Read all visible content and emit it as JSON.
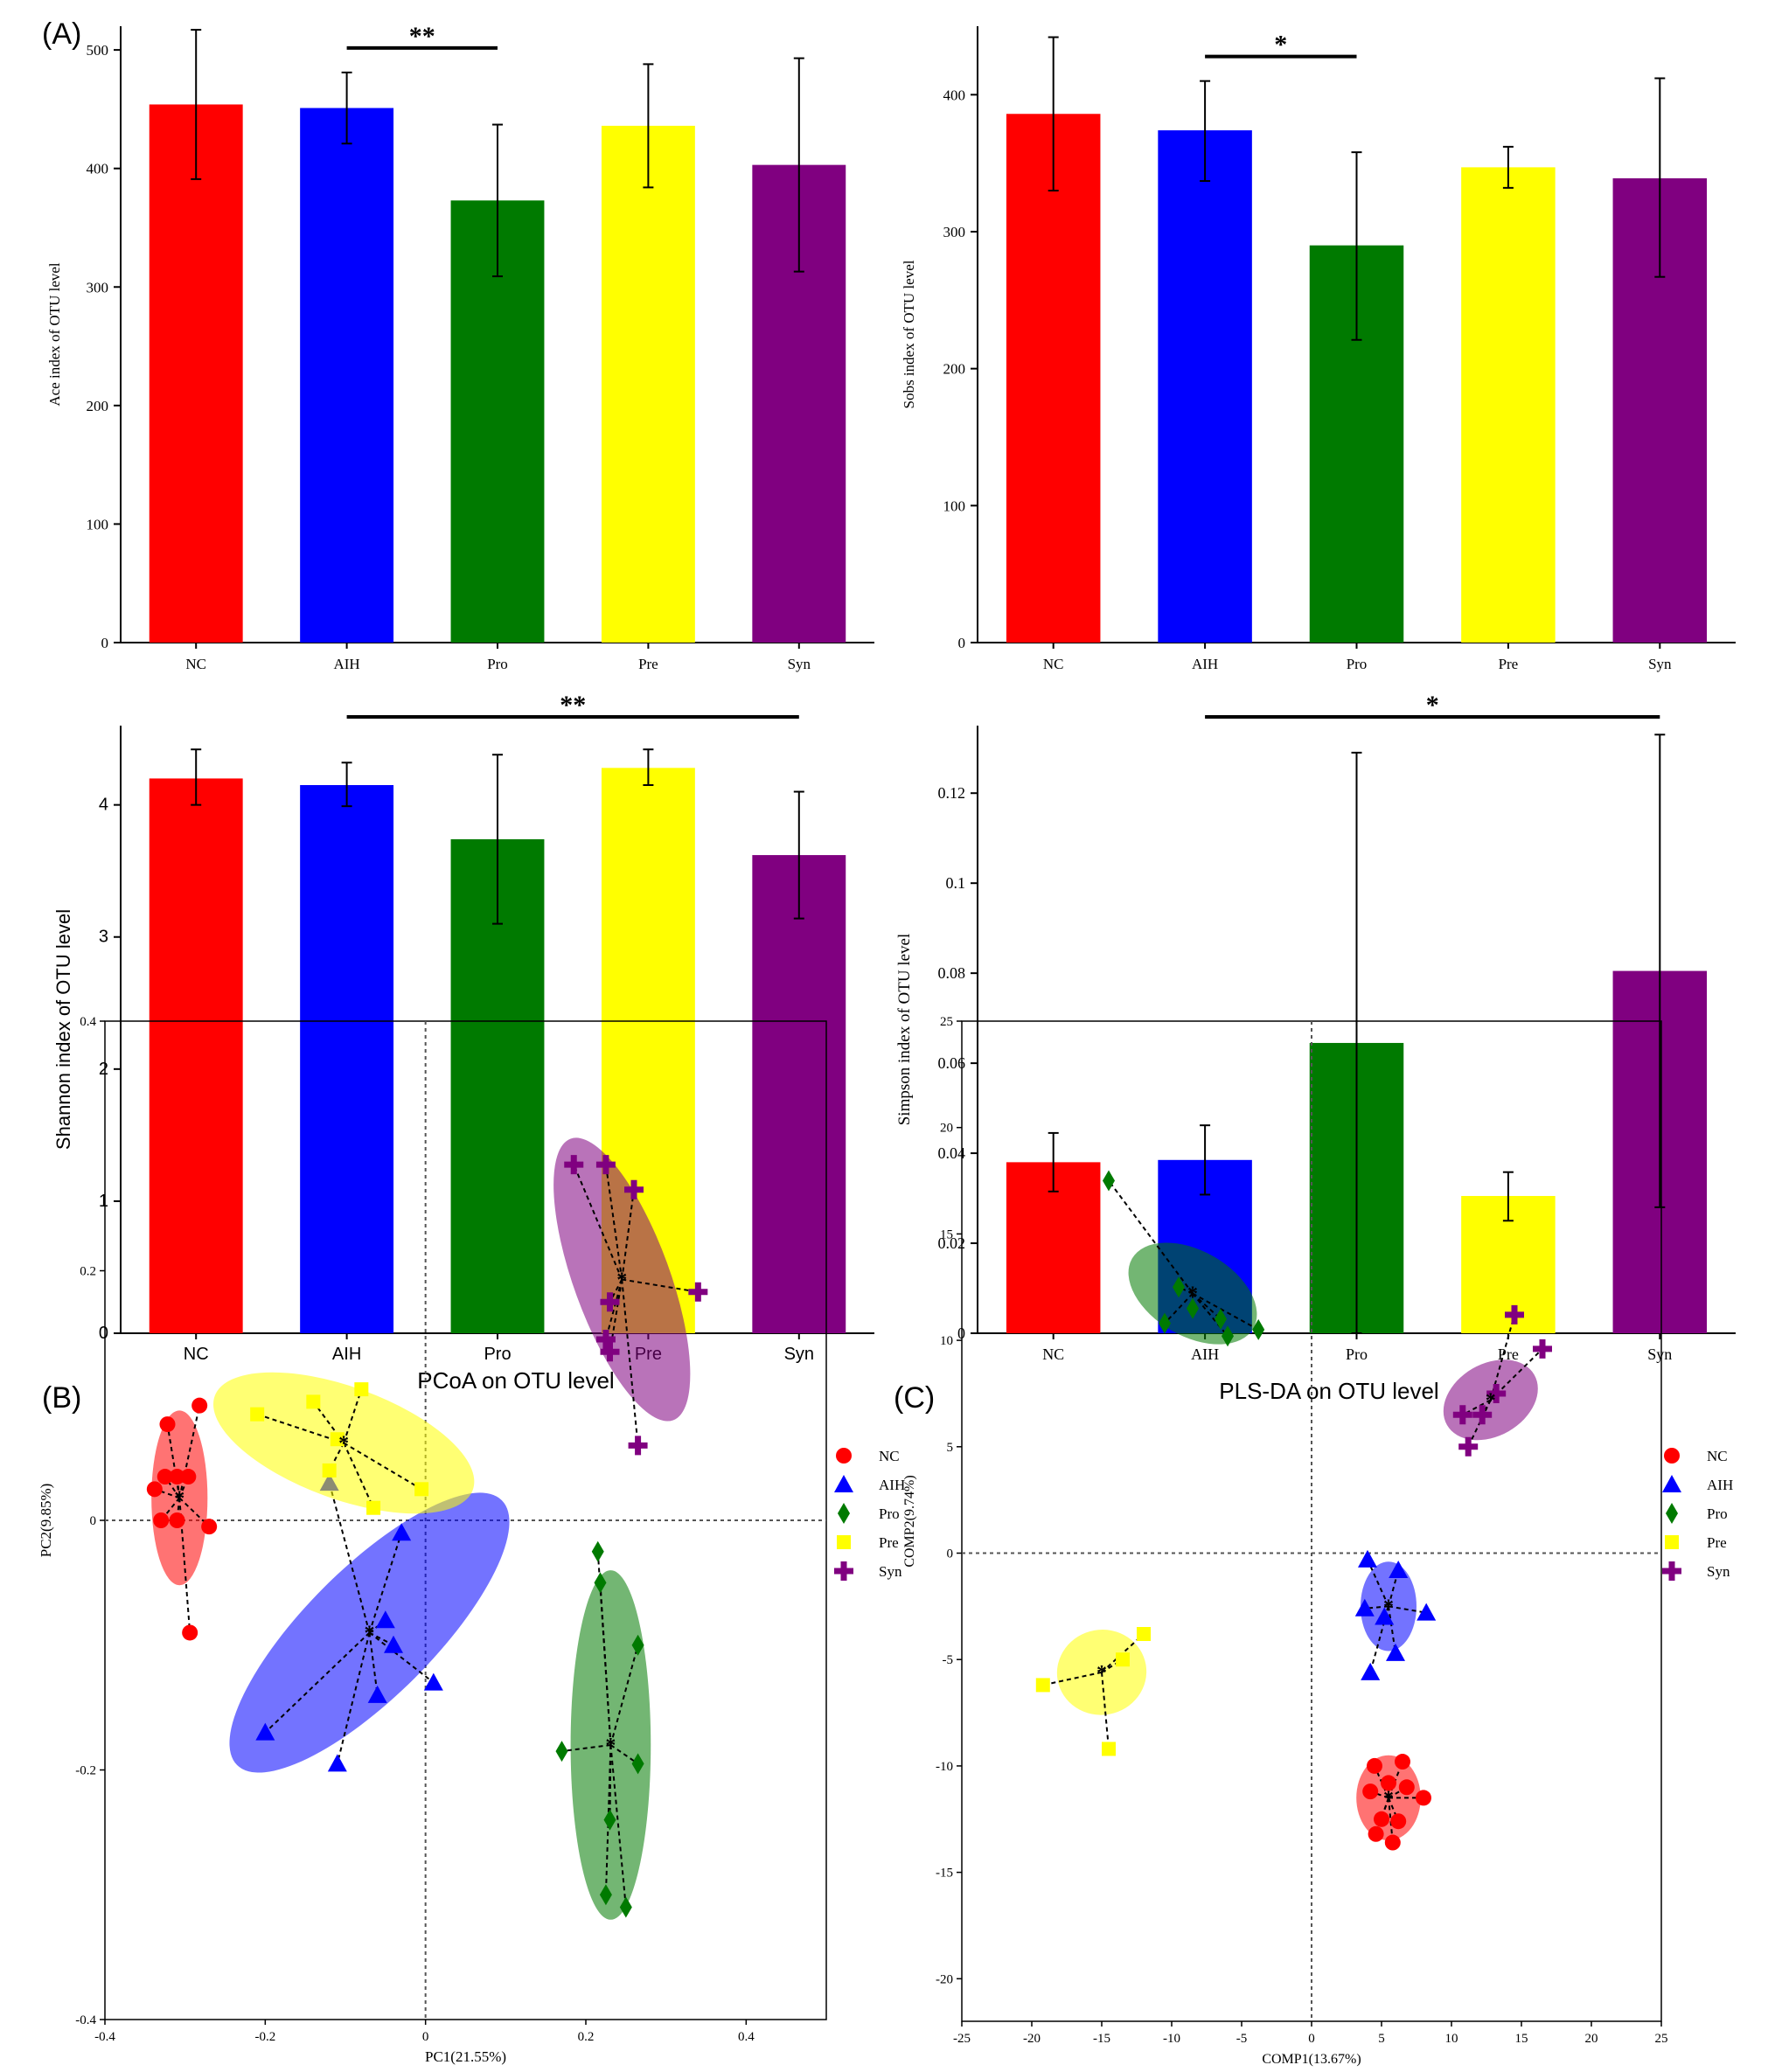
{
  "panel_labels": [
    "(A)",
    "(B)",
    "(C)"
  ],
  "colors": {
    "NC": "#ff0000",
    "AIH": "#0000ff",
    "Pro": "#007a00",
    "Pre": "#ffff00",
    "Syn": "#800080"
  },
  "chart_data": [
    {
      "id": "ace",
      "type": "bar",
      "categories": [
        "NC",
        "AIH",
        "Pro",
        "Pre",
        "Syn"
      ],
      "values": [
        454,
        451,
        373,
        436,
        403
      ],
      "error": [
        [
          391,
          517
        ],
        [
          421,
          481
        ],
        [
          309,
          437
        ],
        [
          384,
          488
        ],
        [
          313,
          493
        ]
      ],
      "ylabel": "Ace index of OTU level",
      "xlabel": "",
      "ylim": [
        0,
        520
      ],
      "yticks": [
        0,
        100,
        200,
        300,
        400,
        500
      ],
      "significance": [
        {
          "from": "AIH",
          "to": "Pro",
          "label": "**"
        }
      ]
    },
    {
      "id": "sobs",
      "type": "bar",
      "categories": [
        "NC",
        "AIH",
        "Pro",
        "Pre",
        "Syn"
      ],
      "values": [
        386,
        374,
        290,
        347,
        339
      ],
      "error": [
        [
          330,
          442
        ],
        [
          337,
          410
        ],
        [
          221,
          358
        ],
        [
          332,
          362
        ],
        [
          267,
          412
        ]
      ],
      "ylabel": "Sobs index of OTU level",
      "xlabel": "",
      "ylim": [
        0,
        450
      ],
      "yticks": [
        0,
        100,
        200,
        300,
        400
      ],
      "significance": [
        {
          "from": "AIH",
          "to": "Pro",
          "label": "*"
        }
      ]
    },
    {
      "id": "shannon",
      "type": "bar",
      "categories": [
        "NC",
        "AIH",
        "Pro",
        "Pre",
        "Syn"
      ],
      "values": [
        4.2,
        4.15,
        3.74,
        4.28,
        3.62
      ],
      "error": [
        [
          4.0,
          4.42
        ],
        [
          3.99,
          4.32
        ],
        [
          3.1,
          4.38
        ],
        [
          4.15,
          4.42
        ],
        [
          3.14,
          4.1
        ]
      ],
      "ylabel": "Shannon index of OTU level",
      "xlabel": "",
      "ylim": [
        0,
        4.6
      ],
      "yticks": [
        0,
        1,
        2,
        3,
        4
      ],
      "significance": [
        {
          "from": "AIH",
          "to": "Syn",
          "label": "**"
        }
      ]
    },
    {
      "id": "simpson",
      "type": "bar",
      "categories": [
        "NC",
        "AIH",
        "Pro",
        "Pre",
        "Syn"
      ],
      "values": [
        0.038,
        0.0385,
        0.0645,
        0.0305,
        0.0805
      ],
      "error": [
        [
          0.0315,
          0.0445
        ],
        [
          0.0308,
          0.0462
        ],
        [
          0.0,
          0.129
        ],
        [
          0.025,
          0.0358
        ],
        [
          0.028,
          0.133
        ]
      ],
      "ylabel": "Simpson index of OTU level",
      "xlabel": "",
      "ylim": [
        0,
        0.135
      ],
      "yticks": [
        0,
        0.02,
        0.04,
        0.06,
        0.08,
        0.1,
        0.12
      ],
      "yticklabels": [
        "0",
        "0.02",
        "0.04",
        "0.06",
        "0.08",
        "0.1",
        "0.12"
      ],
      "significance": [
        {
          "from": "AIH",
          "to": "Syn",
          "label": "*"
        }
      ]
    },
    {
      "id": "pcoa",
      "type": "scatter",
      "title": "PCoA on OTU level",
      "xlabel": "PC1(21.55%)",
      "ylabel": "PC2(9.85%)",
      "xlim": [
        -0.4,
        0.5
      ],
      "ylim": [
        -0.4,
        0.4
      ],
      "xticks": [
        -0.4,
        -0.2,
        0,
        0.2,
        0.4
      ],
      "xticklabels": [
        "-0.4",
        "-0.2",
        "0",
        "0.2",
        "0.4"
      ],
      "yticks": [
        -0.4,
        -0.2,
        0,
        0.2,
        0.4
      ],
      "yticklabels": [
        "-0.4",
        "-0.2",
        "0",
        "0.2",
        "0.4"
      ],
      "legend": "top-right",
      "series": [
        {
          "name": "NC",
          "marker": "circle",
          "centroid": [
            -0.307,
            0.018
          ],
          "ellipse": {
            "rx": 0.035,
            "ry": 0.07,
            "angle": 0
          },
          "points": [
            [
              -0.322,
              0.077
            ],
            [
              -0.282,
              0.092
            ],
            [
              -0.338,
              0.025
            ],
            [
              -0.325,
              0.035
            ],
            [
              -0.31,
              0.035
            ],
            [
              -0.296,
              0.035
            ],
            [
              -0.33,
              0.0
            ],
            [
              -0.31,
              0.0
            ],
            [
              -0.27,
              -0.005
            ],
            [
              -0.294,
              -0.09
            ]
          ]
        },
        {
          "name": "AIH",
          "marker": "triangle",
          "centroid": [
            -0.07,
            -0.09
          ],
          "ellipse": {
            "rx": 0.08,
            "ry": 0.15,
            "angle": 45
          },
          "points": [
            [
              -0.12,
              0.03
            ],
            [
              -0.03,
              -0.01
            ],
            [
              -0.2,
              -0.17
            ],
            [
              -0.11,
              -0.195
            ],
            [
              -0.06,
              -0.14
            ],
            [
              -0.04,
              -0.1
            ],
            [
              0.01,
              -0.13
            ],
            [
              -0.05,
              -0.08
            ]
          ]
        },
        {
          "name": "Pro",
          "marker": "diamond",
          "centroid": [
            0.231,
            -0.18
          ],
          "ellipse": {
            "rx": 0.05,
            "ry": 0.14,
            "angle": 0
          },
          "points": [
            [
              0.215,
              -0.025
            ],
            [
              0.218,
              -0.05
            ],
            [
              0.265,
              -0.1
            ],
            [
              0.17,
              -0.185
            ],
            [
              0.265,
              -0.195
            ],
            [
              0.23,
              -0.24
            ],
            [
              0.225,
              -0.3
            ],
            [
              0.25,
              -0.31
            ]
          ]
        },
        {
          "name": "Pre",
          "marker": "square",
          "centroid": [
            -0.102,
            0.062
          ],
          "ellipse": {
            "rx": 0.07,
            "ry": 0.11,
            "angle": -70
          },
          "points": [
            [
              -0.21,
              0.085
            ],
            [
              -0.14,
              0.095
            ],
            [
              -0.08,
              0.105
            ],
            [
              -0.12,
              0.04
            ],
            [
              -0.065,
              0.01
            ],
            [
              -0.005,
              0.025
            ],
            [
              -0.11,
              0.065
            ]
          ]
        },
        {
          "name": "Syn",
          "marker": "plus",
          "centroid": [
            0.245,
            0.193
          ],
          "ellipse": {
            "rx": 0.06,
            "ry": 0.12,
            "angle": -20
          },
          "points": [
            [
              0.185,
              0.285
            ],
            [
              0.225,
              0.285
            ],
            [
              0.26,
              0.265
            ],
            [
              0.34,
              0.183
            ],
            [
              0.23,
              0.175
            ],
            [
              0.225,
              0.145
            ],
            [
              0.23,
              0.135
            ],
            [
              0.265,
              0.06
            ]
          ]
        }
      ]
    },
    {
      "id": "plsda",
      "type": "scatter",
      "title": "PLS-DA on OTU level",
      "xlabel": "COMP1(13.67%)",
      "ylabel": "COMP2(9.74%)",
      "xlim": [
        -25,
        25
      ],
      "ylim": [
        -22,
        25
      ],
      "xticks": [
        -25,
        -20,
        -15,
        -10,
        -5,
        0,
        5,
        10,
        15,
        20,
        25
      ],
      "xticklabels": [
        "-25",
        "-20",
        "-15",
        "-10",
        "-5",
        "0",
        "5",
        "10",
        "15",
        "20",
        "25"
      ],
      "yticks": [
        -20,
        -15,
        -10,
        -5,
        0,
        5,
        10,
        15,
        20,
        25
      ],
      "yticklabels": [
        "-20",
        "-15",
        "-10",
        "-5",
        "0",
        "5",
        "10",
        "15",
        "20",
        "25"
      ],
      "legend": "top-right",
      "series": [
        {
          "name": "NC",
          "marker": "circle",
          "centroid": [
            5.5,
            -11.5
          ],
          "ellipse": {
            "rx": 2.3,
            "ry": 2.0,
            "angle": 0
          },
          "points": [
            [
              4.5,
              -10.0
            ],
            [
              6.5,
              -9.8
            ],
            [
              5.5,
              -10.8
            ],
            [
              4.2,
              -11.2
            ],
            [
              6.8,
              -11.0
            ],
            [
              8.0,
              -11.5
            ],
            [
              5.0,
              -12.5
            ],
            [
              6.2,
              -12.6
            ],
            [
              4.6,
              -13.2
            ],
            [
              5.8,
              -13.6
            ]
          ]
        },
        {
          "name": "AIH",
          "marker": "triangle",
          "centroid": [
            5.5,
            -2.5
          ],
          "ellipse": {
            "rx": 2.0,
            "ry": 2.1,
            "angle": 0
          },
          "points": [
            [
              4.0,
              -0.3
            ],
            [
              6.2,
              -0.8
            ],
            [
              8.2,
              -2.8
            ],
            [
              3.8,
              -2.6
            ],
            [
              6.0,
              -4.7
            ],
            [
              4.2,
              -5.6
            ],
            [
              5.2,
              -3.0
            ]
          ]
        },
        {
          "name": "Pro",
          "marker": "diamond",
          "centroid": [
            -8.5,
            12.2
          ],
          "ellipse": {
            "rx": 5.0,
            "ry": 2.0,
            "angle": 30
          },
          "points": [
            [
              -14.5,
              17.5
            ],
            [
              -10.5,
              10.8
            ],
            [
              -8.5,
              11.5
            ],
            [
              -6.5,
              11.0
            ],
            [
              -6.0,
              10.2
            ],
            [
              -3.8,
              10.5
            ],
            [
              -9.5,
              12.5
            ]
          ]
        },
        {
          "name": "Pre",
          "marker": "square",
          "centroid": [
            -15.0,
            -5.6
          ],
          "ellipse": {
            "rx": 3.2,
            "ry": 2.0,
            "angle": -10
          },
          "points": [
            [
              -19.2,
              -6.2
            ],
            [
              -12.0,
              -3.8
            ],
            [
              -14.5,
              -9.2
            ],
            [
              -13.5,
              -5.0
            ]
          ]
        },
        {
          "name": "Syn",
          "marker": "plus",
          "centroid": [
            12.8,
            7.2
          ],
          "ellipse": {
            "rx": 3.6,
            "ry": 1.7,
            "angle": -30
          },
          "points": [
            [
              14.5,
              11.2
            ],
            [
              16.5,
              9.6
            ],
            [
              10.8,
              6.5
            ],
            [
              12.2,
              6.5
            ],
            [
              11.2,
              5.0
            ],
            [
              13.2,
              7.5
            ]
          ]
        }
      ]
    }
  ]
}
